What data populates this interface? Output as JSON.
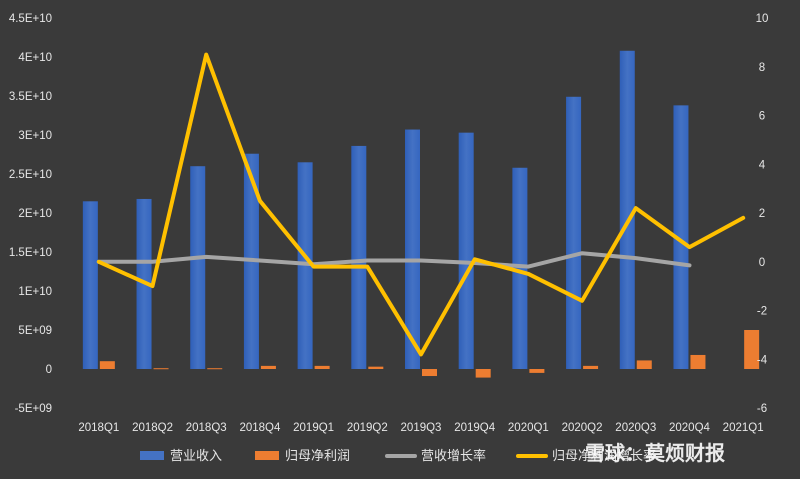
{
  "chart_data": {
    "type": "bar",
    "categories": [
      "2018Q1",
      "2018Q2",
      "2018Q3",
      "2018Q4",
      "2019Q1",
      "2019Q2",
      "2019Q3",
      "2019Q4",
      "2020Q1",
      "2020Q2",
      "2020Q3",
      "2020Q4",
      "2021Q1"
    ],
    "y_left": {
      "ylim": [
        -5000000000.0,
        45000000000.0
      ],
      "ticks": [
        "4.5E+10",
        "4E+10",
        "3.5E+10",
        "3E+10",
        "2.5E+10",
        "2E+10",
        "1.5E+10",
        "1E+10",
        "5E+09",
        "0",
        "-5E+09"
      ]
    },
    "y_right": {
      "ylim": [
        -6,
        10
      ],
      "ticks": [
        "10",
        "8",
        "6",
        "4",
        "2",
        "0",
        "-2",
        "-4",
        "-6"
      ]
    },
    "series": [
      {
        "name": "营业收入",
        "kind": "bar",
        "axis": "left",
        "color": "#4472c4",
        "values": [
          21500000000.0,
          21800000000.0,
          26000000000.0,
          27600000000.0,
          26500000000.0,
          28600000000.0,
          30700000000.0,
          30300000000.0,
          25800000000.0,
          34900000000.0,
          40800000000.0,
          33800000000.0,
          null
        ]
      },
      {
        "name": "归母净利润",
        "kind": "bar",
        "axis": "left",
        "color": "#ed7d31",
        "values": [
          1000000000.0,
          100000000.0,
          100000000.0,
          400000000.0,
          400000000.0,
          300000000.0,
          -900000000.0,
          -1100000000.0,
          -500000000.0,
          400000000.0,
          1100000000.0,
          1800000000.0,
          5000000000.0
        ]
      },
      {
        "name": "营收增长率",
        "kind": "line",
        "axis": "right",
        "color": "#a5a5a5",
        "values": [
          0.0,
          0.0,
          0.2,
          0.05,
          -0.1,
          0.05,
          0.05,
          -0.05,
          -0.2,
          0.35,
          0.15,
          -0.15,
          null
        ]
      },
      {
        "name": "归母净利润增长率",
        "kind": "line",
        "axis": "right",
        "color": "#ffc000",
        "values": [
          0.0,
          -1.0,
          8.5,
          2.5,
          -0.2,
          -0.2,
          -3.8,
          0.1,
          -0.5,
          -1.6,
          2.2,
          0.6,
          1.8
        ]
      }
    ],
    "legend": "bottom",
    "grid": false
  },
  "watermark": "雪球：莫烦财报"
}
